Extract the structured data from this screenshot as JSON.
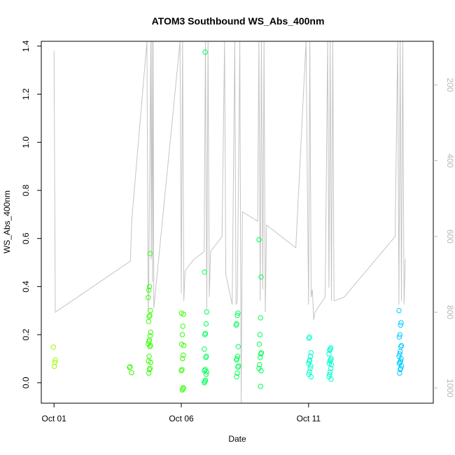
{
  "chart_data": {
    "type": "scatter",
    "title": "ATOM3 Southbound WS_Abs_400nm",
    "xlabel": "Date",
    "ylabel": "WS_Abs_400nm",
    "x_ticks": [
      {
        "day": 1,
        "label": "Oct 01"
      },
      {
        "day": 6,
        "label": "Oct 06"
      },
      {
        "day": 11,
        "label": "Oct 11"
      }
    ],
    "xlim": [
      0.5,
      15.9
    ],
    "ylim": [
      -0.085,
      1.42
    ],
    "y_ticks": [
      0.0,
      0.2,
      0.4,
      0.6,
      0.8,
      1.0,
      1.2,
      1.4
    ],
    "y2_ticks": [
      200,
      400,
      600,
      800,
      1000
    ],
    "y2lim": [
      1040,
      85
    ],
    "y2_reversed": true,
    "grid": false,
    "point_colors_by_day": [
      "#99ff00",
      "#33ff00",
      "#00ff55",
      "#00ffcc",
      "#00ccff"
    ],
    "trace_color": "#c4c4c4",
    "points": [
      {
        "day": 1.02,
        "values": [
          0.148,
          0.095,
          0.085,
          0.068
        ]
      },
      {
        "day": 4.0,
        "values": [
          0.066,
          0.064,
          0.042
        ]
      },
      {
        "day": 4.75,
        "values": [
          0.537,
          0.4,
          0.385,
          0.355,
          0.3,
          0.28,
          0.275,
          0.255,
          0.21,
          0.195,
          0.178,
          0.172,
          0.162,
          0.155,
          0.15,
          0.11,
          0.09,
          0.085,
          0.06,
          0.055,
          0.04
        ]
      },
      {
        "day": 6.05,
        "values": [
          0.29,
          0.285,
          0.235,
          0.2,
          0.16,
          0.155,
          0.115,
          0.1,
          0.055,
          0.05,
          -0.02,
          -0.025,
          -0.03
        ]
      },
      {
        "day": 6.95,
        "values": [
          1.375,
          0.46,
          0.295,
          0.245,
          0.205,
          0.2,
          0.14,
          0.11,
          0.105,
          0.055,
          0.05,
          0.045,
          0.035,
          0.01,
          0.005,
          0.0
        ]
      },
      {
        "day": 8.2,
        "values": [
          0.29,
          0.28,
          0.245,
          0.24,
          0.15,
          0.11,
          0.1,
          0.095,
          0.07,
          0.065,
          0.04,
          0.025
        ]
      },
      {
        "day": 9.1,
        "values": [
          0.595,
          0.44,
          0.27,
          0.2,
          0.16,
          0.125,
          0.12,
          0.105,
          0.075,
          0.06,
          0.05,
          -0.015
        ]
      },
      {
        "day": 11.05,
        "values": [
          0.19,
          0.185,
          0.125,
          0.11,
          0.095,
          0.09,
          0.08,
          0.07,
          0.06,
          0.045,
          0.035,
          0.025
        ]
      },
      {
        "day": 11.85,
        "values": [
          0.145,
          0.14,
          0.135,
          0.12,
          0.1,
          0.095,
          0.09,
          0.08,
          0.075,
          0.06,
          0.045,
          0.035,
          0.025,
          0.015
        ]
      },
      {
        "day": 14.6,
        "values": [
          0.3,
          0.25,
          0.24,
          0.2,
          0.19,
          0.155,
          0.15,
          0.13,
          0.12,
          0.11,
          0.1,
          0.09,
          0.085,
          0.08,
          0.07,
          0.06,
          0.055,
          0.04
        ]
      }
    ],
    "altitude_trace": [
      [
        1.0,
        110
      ],
      [
        1.05,
        800
      ],
      [
        4.0,
        665
      ],
      [
        4.05,
        560
      ],
      [
        4.65,
        85
      ],
      [
        4.7,
        800
      ],
      [
        4.72,
        730
      ],
      [
        4.8,
        85
      ],
      [
        4.82,
        660
      ],
      [
        4.85,
        85
      ],
      [
        4.87,
        720
      ],
      [
        4.9,
        85
      ],
      [
        4.92,
        790
      ],
      [
        5.95,
        85
      ],
      [
        6.0,
        750
      ],
      [
        6.05,
        85
      ],
      [
        6.1,
        770
      ],
      [
        6.15,
        690
      ],
      [
        6.5,
        660
      ],
      [
        6.9,
        640
      ],
      [
        6.95,
        85
      ],
      [
        7.0,
        790
      ],
      [
        7.05,
        85
      ],
      [
        7.1,
        760
      ],
      [
        7.15,
        640
      ],
      [
        7.6,
        600
      ],
      [
        7.7,
        85
      ],
      [
        7.75,
        700
      ],
      [
        8.0,
        780
      ],
      [
        8.1,
        85
      ],
      [
        8.15,
        780
      ],
      [
        8.2,
        770
      ],
      [
        8.3,
        85
      ],
      [
        8.35,
        1040
      ],
      [
        8.4,
        535
      ],
      [
        9.0,
        560
      ],
      [
        9.05,
        85
      ],
      [
        9.1,
        770
      ],
      [
        9.15,
        85
      ],
      [
        9.2,
        740
      ],
      [
        9.25,
        85
      ],
      [
        9.3,
        800
      ],
      [
        9.35,
        570
      ],
      [
        10.5,
        630
      ],
      [
        10.9,
        85
      ],
      [
        11.0,
        780
      ],
      [
        11.05,
        85
      ],
      [
        11.1,
        760
      ],
      [
        11.15,
        740
      ],
      [
        11.2,
        820
      ],
      [
        11.25,
        800
      ],
      [
        11.65,
        760
      ],
      [
        11.75,
        85
      ],
      [
        11.8,
        735
      ],
      [
        11.85,
        85
      ],
      [
        11.9,
        770
      ],
      [
        11.95,
        85
      ],
      [
        12.0,
        770
      ],
      [
        12.4,
        760
      ],
      [
        14.4,
        600
      ],
      [
        14.5,
        85
      ],
      [
        14.55,
        780
      ],
      [
        14.6,
        85
      ],
      [
        14.65,
        770
      ],
      [
        14.7,
        85
      ],
      [
        14.75,
        780
      ],
      [
        14.8,
        660
      ]
    ]
  }
}
